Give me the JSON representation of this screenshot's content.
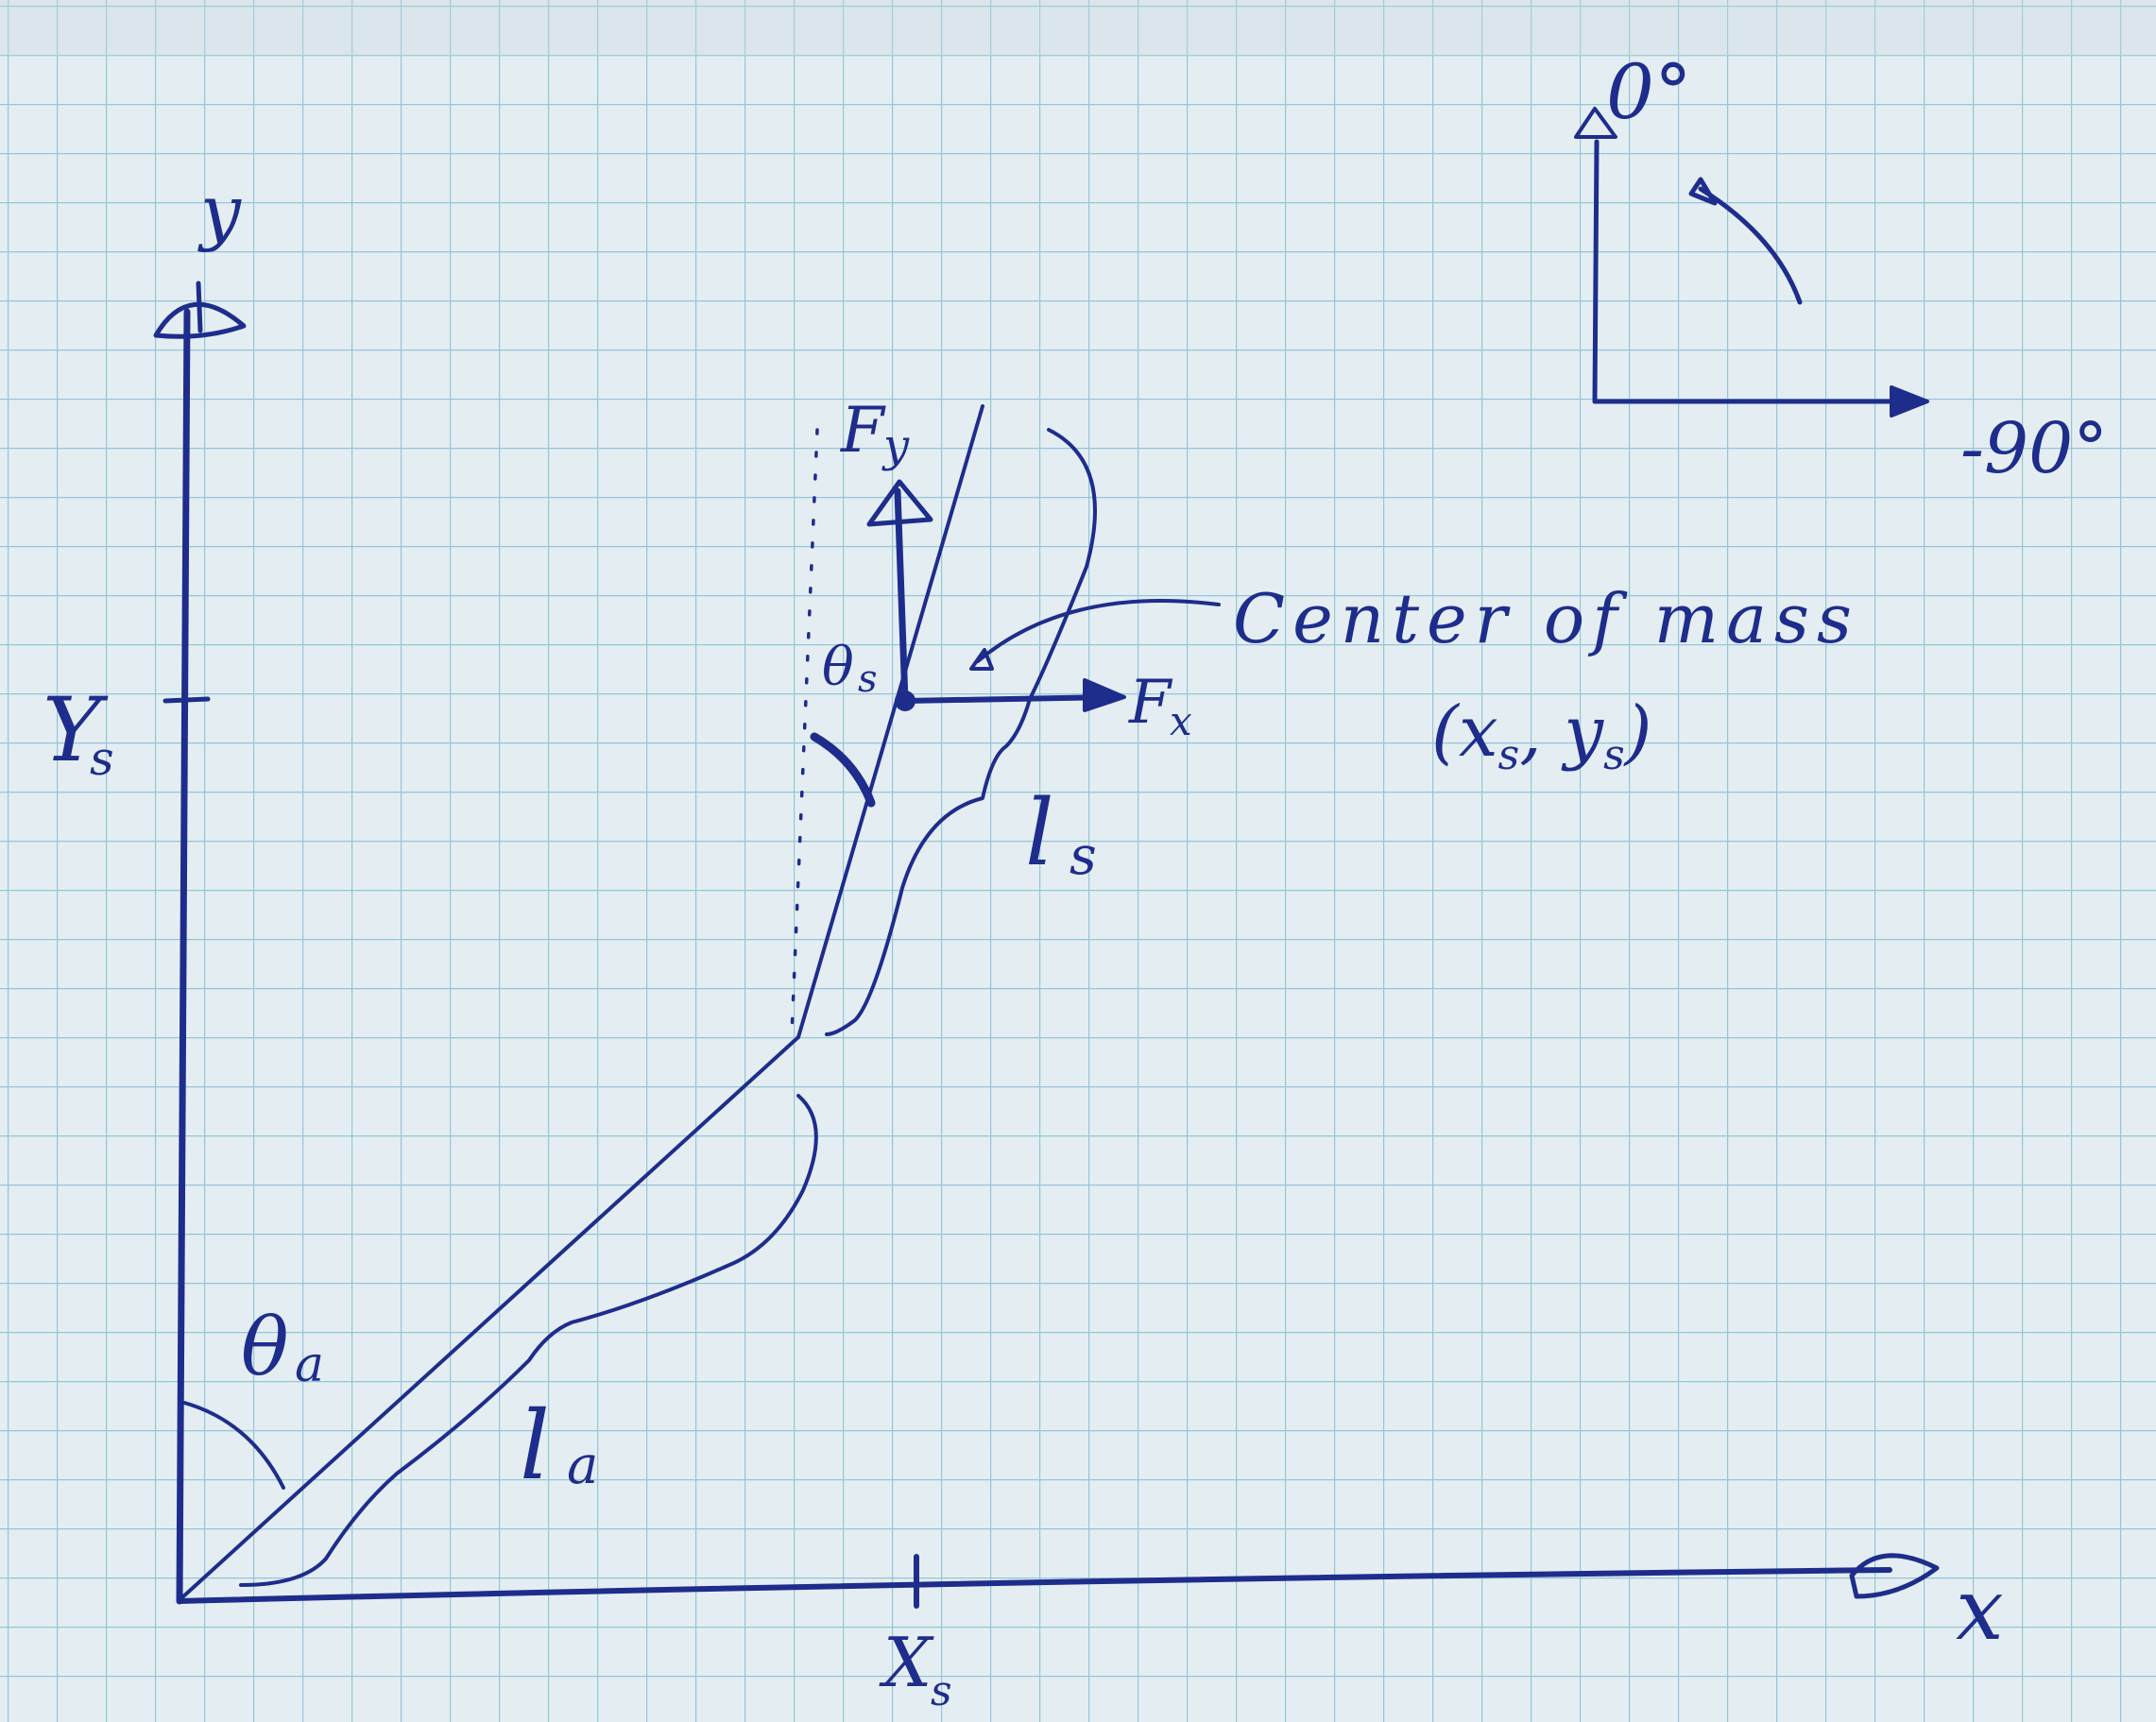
{
  "colors": {
    "paper": "#e4eef2",
    "grid": "#86bfd2",
    "ink": "#1e2d8c"
  },
  "axes": {
    "y_label": "y",
    "x_label": "x",
    "ys_tick": "Y",
    "ys_tick_sub": "s",
    "xs_tick": "X",
    "xs_tick_sub": "s"
  },
  "angles": {
    "theta_s": "θ",
    "theta_s_sub": "s",
    "theta_a": "θ",
    "theta_a_sub": "a"
  },
  "lengths": {
    "l_s": "l",
    "l_s_sub": "s",
    "l_a": "l",
    "l_a_sub": "a"
  },
  "forces": {
    "fy": "F",
    "fy_sub": "y",
    "fx": "F",
    "fx_sub": "x"
  },
  "center_of_mass": {
    "label": "Center of mass",
    "coords": "(x",
    "coords_sub1": "s",
    "coords_mid": ", y",
    "coords_sub2": "s",
    "coords_end": ")"
  },
  "orientation": {
    "zero": "0°",
    "neg_ninety": "-90°"
  },
  "icons": [
    "arrow-head-icon"
  ]
}
